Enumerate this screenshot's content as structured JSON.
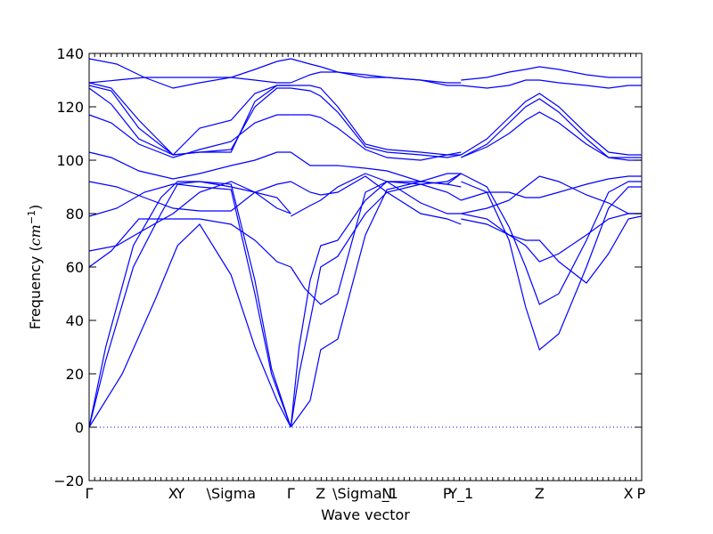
{
  "chart_data": {
    "type": "line",
    "title": "",
    "xlabel": "Wave vector",
    "ylabel_prefix": "Frequency (",
    "ylabel_unit": "cm",
    "ylabel_exp": "−1",
    "ylabel_suffix": ")",
    "ylim": [
      -20,
      140
    ],
    "yticks": [
      -20,
      0,
      20,
      40,
      60,
      80,
      100,
      120,
      140
    ],
    "xlim": [
      0,
      1
    ],
    "grid": false,
    "zero_line": true,
    "colors": {
      "bands": "#0000ff"
    },
    "high_symmetry_points": [
      {
        "label": "Γ",
        "x": 0.0
      },
      {
        "label": "X",
        "x": 0.152
      },
      {
        "label": "Y",
        "x": 0.165
      },
      {
        "label": "\\Sigma",
        "x": 0.257
      },
      {
        "label": "Γ",
        "x": 0.365
      },
      {
        "label": "Z",
        "x": 0.419
      },
      {
        "label": "\\Sigma_1",
        "x": 0.5
      },
      {
        "label": "N",
        "x": 0.539
      },
      {
        "label": "P",
        "x": 0.648
      },
      {
        "label": "Y_1",
        "x": 0.673
      },
      {
        "label": "Z",
        "x": 0.815
      },
      {
        "label": "X",
        "x": 0.976
      },
      {
        "label": "P",
        "x": 0.999
      }
    ],
    "series": [
      {
        "x": [
          0,
          0.03,
          0.08,
          0.13,
          0.16,
          0.2,
          0.257,
          0.3,
          0.33,
          0.365
        ],
        "values": [
          0,
          25,
          60,
          80,
          91,
          90,
          89,
          50,
          20,
          0
        ]
      },
      {
        "x": [
          0,
          0.03,
          0.08,
          0.13,
          0.16,
          0.2,
          0.257,
          0.3,
          0.33,
          0.365
        ],
        "values": [
          0,
          30,
          68,
          86,
          92,
          92,
          91,
          55,
          22,
          0
        ]
      },
      {
        "x": [
          0,
          0.06,
          0.12,
          0.16,
          0.2,
          0.257,
          0.3,
          0.34,
          0.365
        ],
        "values": [
          0,
          20,
          48,
          68,
          76,
          57,
          30,
          10,
          0
        ]
      },
      {
        "x": [
          0,
          0.04,
          0.09,
          0.15,
          0.2,
          0.257,
          0.3,
          0.34,
          0.365
        ],
        "values": [
          60,
          66,
          78,
          78,
          78,
          76,
          70,
          62,
          60
        ]
      },
      {
        "x": [
          0,
          0.05,
          0.1,
          0.152,
          0.2,
          0.257,
          0.3,
          0.34,
          0.365
        ],
        "values": [
          66,
          68,
          74,
          80,
          88,
          92,
          88,
          82,
          80
        ]
      },
      {
        "x": [
          0,
          0.05,
          0.1,
          0.152,
          0.2,
          0.257,
          0.3,
          0.34,
          0.365
        ],
        "values": [
          79,
          82,
          88,
          91,
          92,
          90,
          88,
          86,
          80
        ]
      },
      {
        "x": [
          0,
          0.05,
          0.1,
          0.152,
          0.2,
          0.257,
          0.3,
          0.34,
          0.365
        ],
        "values": [
          92,
          90,
          86,
          82,
          81,
          81,
          88,
          91,
          92
        ]
      },
      {
        "x": [
          0,
          0.04,
          0.09,
          0.152,
          0.2,
          0.257,
          0.3,
          0.34,
          0.365
        ],
        "values": [
          103,
          101,
          96,
          93,
          95,
          98,
          100,
          103,
          103
        ]
      },
      {
        "x": [
          0,
          0.04,
          0.09,
          0.152,
          0.2,
          0.257,
          0.3,
          0.34,
          0.365
        ],
        "values": [
          117,
          114,
          106,
          101,
          104,
          107,
          114,
          117,
          117
        ]
      },
      {
        "x": [
          0,
          0.04,
          0.09,
          0.152,
          0.2,
          0.257,
          0.3,
          0.34,
          0.365
        ],
        "values": [
          127,
          121,
          108,
          102,
          103,
          104,
          120,
          127,
          127
        ]
      },
      {
        "x": [
          0,
          0.04,
          0.09,
          0.152,
          0.2,
          0.257,
          0.3,
          0.34,
          0.365
        ],
        "values": [
          128,
          126,
          112,
          102,
          103,
          103,
          122,
          128,
          128
        ]
      },
      {
        "x": [
          0,
          0.04,
          0.09,
          0.152,
          0.2,
          0.257,
          0.3,
          0.34,
          0.365
        ],
        "values": [
          129,
          127,
          115,
          102,
          112,
          115,
          125,
          128,
          128
        ]
      },
      {
        "x": [
          0,
          0.05,
          0.1,
          0.152,
          0.2,
          0.257,
          0.3,
          0.34,
          0.365
        ],
        "values": [
          138,
          136,
          131,
          127,
          129,
          131,
          134,
          137,
          138
        ]
      },
      {
        "x": [
          0,
          0.05,
          0.1,
          0.152,
          0.2,
          0.257,
          0.3,
          0.34,
          0.365
        ],
        "values": [
          129,
          130,
          131,
          131,
          131,
          131,
          130,
          129,
          129
        ]
      },
      {
        "x": [
          0.365,
          0.38,
          0.4,
          0.419,
          0.45,
          0.5,
          0.539,
          0.6,
          0.648,
          0.673
        ],
        "values": [
          0,
          30,
          55,
          68,
          70,
          85,
          92,
          92,
          91,
          95
        ]
      },
      {
        "x": [
          0.365,
          0.38,
          0.4,
          0.419,
          0.45,
          0.5,
          0.539,
          0.6,
          0.648,
          0.673
        ],
        "values": [
          0,
          20,
          40,
          60,
          64,
          80,
          88,
          91,
          92,
          95
        ]
      },
      {
        "x": [
          0.365,
          0.4,
          0.419,
          0.45,
          0.5,
          0.539,
          0.6,
          0.648,
          0.673
        ],
        "values": [
          0,
          10,
          29,
          33,
          72,
          89,
          92,
          91,
          90
        ]
      },
      {
        "x": [
          0.365,
          0.39,
          0.419,
          0.45,
          0.5,
          0.539,
          0.6,
          0.648,
          0.673
        ],
        "values": [
          60,
          52,
          46,
          50,
          88,
          92,
          91,
          88,
          85
        ]
      },
      {
        "x": [
          0.365,
          0.4,
          0.419,
          0.45,
          0.5,
          0.539,
          0.6,
          0.648,
          0.673
        ],
        "values": [
          79,
          83,
          85,
          90,
          95,
          92,
          84,
          80,
          80
        ]
      },
      {
        "x": [
          0.365,
          0.4,
          0.419,
          0.45,
          0.5,
          0.539,
          0.6,
          0.648,
          0.673
        ],
        "values": [
          92,
          88,
          87,
          88,
          94,
          88,
          80,
          78,
          76
        ]
      },
      {
        "x": [
          0.365,
          0.4,
          0.419,
          0.45,
          0.5,
          0.539,
          0.6,
          0.648,
          0.673
        ],
        "values": [
          103,
          98,
          98,
          98,
          97,
          96,
          92,
          95,
          95
        ]
      },
      {
        "x": [
          0.365,
          0.4,
          0.419,
          0.45,
          0.5,
          0.539,
          0.6,
          0.648,
          0.673
        ],
        "values": [
          117,
          117,
          116,
          112,
          104,
          101,
          100,
          102,
          103
        ]
      },
      {
        "x": [
          0.365,
          0.4,
          0.419,
          0.45,
          0.5,
          0.539,
          0.6,
          0.648,
          0.673
        ],
        "values": [
          127,
          126,
          124,
          118,
          105,
          103,
          102,
          101,
          102
        ]
      },
      {
        "x": [
          0.365,
          0.4,
          0.419,
          0.45,
          0.5,
          0.539,
          0.6,
          0.648,
          0.673
        ],
        "values": [
          128,
          128,
          127,
          120,
          106,
          104,
          103,
          102,
          102
        ]
      },
      {
        "x": [
          0.365,
          0.4,
          0.419,
          0.45,
          0.5,
          0.539,
          0.6,
          0.648,
          0.673
        ],
        "values": [
          138,
          136,
          135,
          133,
          131,
          131,
          130,
          129,
          129
        ]
      },
      {
        "x": [
          0.365,
          0.4,
          0.419,
          0.45,
          0.5,
          0.539,
          0.6,
          0.648,
          0.673
        ],
        "values": [
          129,
          132,
          133,
          133,
          132,
          131,
          130,
          128,
          128
        ]
      },
      {
        "x": [
          0.673,
          0.72,
          0.76,
          0.79,
          0.815,
          0.85,
          0.9,
          0.94,
          0.976,
          0.999
        ],
        "values": [
          95,
          90,
          75,
          60,
          46,
          50,
          70,
          88,
          92,
          92
        ]
      },
      {
        "x": [
          0.673,
          0.72,
          0.76,
          0.79,
          0.815,
          0.85,
          0.9,
          0.94,
          0.976,
          0.999
        ],
        "values": [
          92,
          88,
          70,
          45,
          29,
          35,
          60,
          82,
          90,
          90
        ]
      },
      {
        "x": [
          0.673,
          0.72,
          0.76,
          0.79,
          0.815,
          0.85,
          0.9,
          0.94,
          0.976,
          0.999
        ],
        "values": [
          80,
          78,
          72,
          68,
          62,
          65,
          72,
          78,
          80,
          80
        ]
      },
      {
        "x": [
          0.673,
          0.72,
          0.76,
          0.79,
          0.815,
          0.85,
          0.9,
          0.94,
          0.976,
          0.999
        ],
        "values": [
          78,
          76,
          72,
          70,
          70,
          62,
          54,
          65,
          78,
          79
        ]
      },
      {
        "x": [
          0.673,
          0.72,
          0.76,
          0.79,
          0.815,
          0.85,
          0.9,
          0.94,
          0.976,
          0.999
        ],
        "values": [
          80,
          82,
          85,
          90,
          94,
          92,
          87,
          84,
          80,
          80
        ]
      },
      {
        "x": [
          0.673,
          0.72,
          0.76,
          0.79,
          0.815,
          0.85,
          0.9,
          0.94,
          0.976,
          0.999
        ],
        "values": [
          85,
          88,
          88,
          86,
          86,
          88,
          91,
          93,
          94,
          94
        ]
      },
      {
        "x": [
          0.673,
          0.72,
          0.76,
          0.79,
          0.815,
          0.85,
          0.9,
          0.94,
          0.976,
          0.999
        ],
        "values": [
          102,
          108,
          116,
          122,
          125,
          120,
          110,
          103,
          102,
          102
        ]
      },
      {
        "x": [
          0.673,
          0.72,
          0.76,
          0.79,
          0.815,
          0.85,
          0.9,
          0.94,
          0.976,
          0.999
        ],
        "values": [
          101,
          106,
          114,
          120,
          123,
          118,
          108,
          101,
          100,
          100
        ]
      },
      {
        "x": [
          0.673,
          0.72,
          0.76,
          0.79,
          0.815,
          0.85,
          0.9,
          0.94,
          0.976,
          0.999
        ],
        "values": [
          101,
          105,
          110,
          115,
          118,
          114,
          106,
          101,
          101,
          101
        ]
      },
      {
        "x": [
          0.673,
          0.72,
          0.76,
          0.79,
          0.815,
          0.85,
          0.9,
          0.94,
          0.976,
          0.999
        ],
        "values": [
          130,
          131,
          133,
          134,
          135,
          134,
          132,
          131,
          131,
          131
        ]
      },
      {
        "x": [
          0.673,
          0.72,
          0.76,
          0.79,
          0.815,
          0.85,
          0.9,
          0.94,
          0.976,
          0.999
        ],
        "values": [
          128,
          127,
          128,
          130,
          130,
          129,
          128,
          127,
          128,
          128
        ]
      }
    ]
  }
}
